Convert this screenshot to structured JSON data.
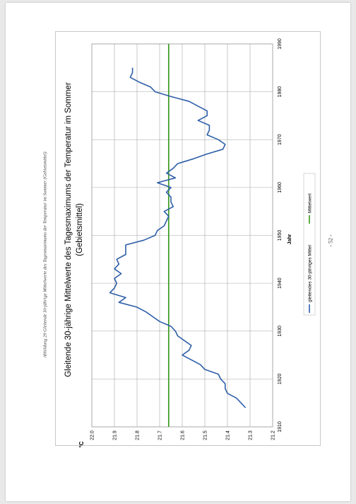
{
  "caption": "Abbildung 29 Gleitende 30-jährige Mittelwerte des Tagesmaximums der Temperatur im Sommer (Gebietsmittel)",
  "page_number": "- 52 -",
  "chart_data": {
    "type": "line",
    "title": "Gleitende 30-jährige Mittelwerte des Tagesmaximums der Temperatur im Sommer",
    "subtitle": "(Gebietsmittel)",
    "xlabel": "Jahr",
    "ylabel": "°C",
    "xlim": [
      1910,
      1990
    ],
    "ylim": [
      21.2,
      22.0
    ],
    "xticks": [
      "1910",
      "1920",
      "1930",
      "1940",
      "1950",
      "1960",
      "1970",
      "1980",
      "1990"
    ],
    "yticks": [
      "21.2",
      "21.3",
      "21.4",
      "21.5",
      "21.6",
      "21.7",
      "21.8",
      "21.9",
      "22.0"
    ],
    "grid": true,
    "legend_position": "bottom",
    "series": [
      {
        "name": "gleitendes 30-jähriges Mittel",
        "color": "#2e5ea8",
        "x": [
          1914,
          1915,
          1916,
          1917,
          1918,
          1919,
          1920,
          1921,
          1922,
          1923,
          1924,
          1925,
          1926,
          1927,
          1928,
          1929,
          1930,
          1931,
          1932,
          1933,
          1934,
          1935,
          1936,
          1937,
          1938,
          1939,
          1940,
          1941,
          1942,
          1943,
          1944,
          1945,
          1946,
          1947,
          1948,
          1949,
          1950,
          1951,
          1952,
          1953,
          1954,
          1955,
          1956,
          1957,
          1958,
          1959,
          1960,
          1961,
          1962,
          1963,
          1964,
          1965,
          1966,
          1967,
          1968,
          1969,
          1970,
          1971,
          1972,
          1973,
          1974,
          1975,
          1976,
          1977,
          1978,
          1979,
          1980,
          1981,
          1982,
          1983,
          1984,
          1985
        ],
        "y": [
          21.32,
          21.34,
          21.36,
          21.4,
          21.41,
          21.41,
          21.43,
          21.44,
          21.5,
          21.52,
          21.56,
          21.6,
          21.57,
          21.56,
          21.59,
          21.62,
          21.63,
          21.65,
          21.7,
          21.73,
          21.76,
          21.8,
          21.88,
          21.85,
          21.92,
          21.9,
          21.89,
          21.9,
          21.87,
          21.9,
          21.88,
          21.89,
          21.85,
          21.85,
          21.85,
          21.77,
          21.72,
          21.71,
          21.68,
          21.67,
          21.66,
          21.68,
          21.64,
          21.65,
          21.65,
          21.67,
          21.65,
          21.71,
          21.63,
          21.67,
          21.64,
          21.62,
          21.55,
          21.49,
          21.42,
          21.41,
          21.44,
          21.49,
          21.48,
          21.48,
          21.53,
          21.49,
          21.49,
          21.53,
          21.57,
          21.65,
          21.72,
          21.74,
          21.79,
          21.83,
          21.82,
          21.82
        ]
      },
      {
        "name": "Mittelwert",
        "color": "#3a9a1f",
        "x": [
          1910,
          1990
        ],
        "y": [
          21.66,
          21.66
        ]
      }
    ]
  }
}
